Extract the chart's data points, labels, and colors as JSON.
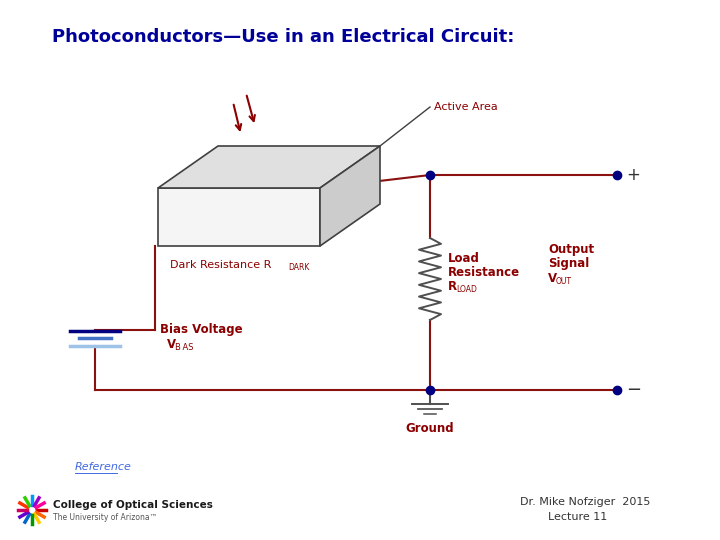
{
  "title": "Photoconductors—Use in an Electrical Circuit:",
  "title_color": "#000099",
  "title_fontsize": 13,
  "bg_color": "#ffffff",
  "wire_color": "#8B1010",
  "dot_color": "#000080",
  "label_color": "#8B0000",
  "battery_colors": [
    "#000080",
    "#4472C4",
    "#9DC3E6"
  ],
  "box_front_color": "#f5f5f5",
  "box_top_color": "#e0e0e0",
  "box_right_color": "#cccccc",
  "box_edge_color": "#404040",
  "resistor_color": "#505050",
  "ground_color": "#505050",
  "footer_text1": "Dr. Mike Nofziger  2015",
  "footer_text2": "Lecture 11",
  "ref_color": "#4169E1"
}
